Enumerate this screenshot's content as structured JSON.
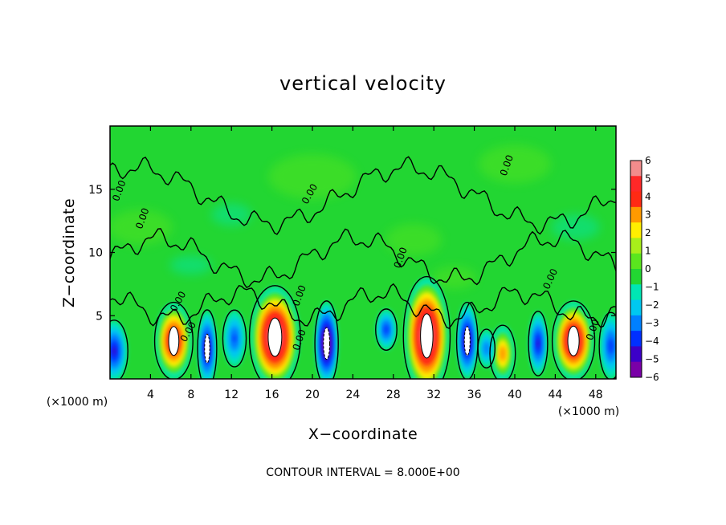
{
  "chart_data": {
    "type": "heatmap",
    "title": "vertical velocity",
    "xlabel": "X−coordinate",
    "ylabel": "Z−coordinate",
    "x_unit_label": "(×1000 m)",
    "y_unit_label": "(×1000 m)",
    "xlim": [
      0,
      50
    ],
    "ylim": [
      0,
      20
    ],
    "x_ticks": [
      4,
      8,
      12,
      16,
      20,
      24,
      28,
      32,
      36,
      40,
      44,
      48
    ],
    "y_ticks": [
      5,
      10,
      15
    ],
    "colorbar": {
      "levels": [
        -6,
        -5,
        -4,
        -3,
        -2,
        -1,
        0,
        1,
        2,
        3,
        4,
        5,
        6
      ],
      "labels": [
        "6",
        "5",
        "4",
        "3",
        "2",
        "1",
        "0",
        "−1",
        "−2",
        "−3",
        "−4",
        "−5",
        "−6"
      ],
      "colors": [
        "#7a00a8",
        "#3c00c8",
        "#0030ff",
        "#0080ff",
        "#00c8f0",
        "#00e6b4",
        "#22d632",
        "#5ae61e",
        "#a8ee1a",
        "#ffee00",
        "#ff9a00",
        "#ff2a14",
        "#ff2828",
        "#f28c8c"
      ]
    },
    "contour_interval_text": "CONTOUR INTERVAL = 8.000E+00",
    "contour_labels": [
      "0.00",
      "0.00",
      "0.00",
      "0.00",
      "0.00",
      "0.00",
      "0.00",
      "0.00",
      "0.00",
      "0.00",
      "0.00"
    ],
    "cells": [
      {
        "x": 6.3,
        "z": 3.0,
        "rx": 1.8,
        "rz": 3.0,
        "v": 7
      },
      {
        "x": 16.3,
        "z": 3.3,
        "rx": 2.4,
        "rz": 4.0,
        "v": 9
      },
      {
        "x": 31.3,
        "z": 3.4,
        "rx": 2.2,
        "rz": 4.6,
        "v": 9
      },
      {
        "x": 38.8,
        "z": 2.0,
        "rx": 1.2,
        "rz": 2.2,
        "v": 4.5
      },
      {
        "x": 45.8,
        "z": 3.0,
        "rx": 2.0,
        "rz": 3.1,
        "v": 8
      },
      {
        "x": 0.4,
        "z": 2.2,
        "rx": 1.3,
        "rz": 2.4,
        "v": -6
      },
      {
        "x": 9.6,
        "z": 2.4,
        "rx": 0.9,
        "rz": 3.0,
        "v": -7
      },
      {
        "x": 12.3,
        "z": 3.2,
        "rx": 1.1,
        "rz": 2.2,
        "v": -4.5
      },
      {
        "x": 21.4,
        "z": 2.8,
        "rx": 1.1,
        "rz": 3.3,
        "v": -9
      },
      {
        "x": 27.3,
        "z": 3.9,
        "rx": 1.0,
        "rz": 1.6,
        "v": -5
      },
      {
        "x": 35.3,
        "z": 3.0,
        "rx": 1.0,
        "rz": 3.0,
        "v": -7.5
      },
      {
        "x": 37.2,
        "z": 2.4,
        "rx": 0.8,
        "rz": 1.5,
        "v": -4
      },
      {
        "x": 42.3,
        "z": 2.8,
        "rx": 0.9,
        "rz": 2.5,
        "v": -6
      },
      {
        "x": 49.5,
        "z": 2.6,
        "rx": 1.1,
        "rz": 2.6,
        "v": -5
      }
    ]
  }
}
